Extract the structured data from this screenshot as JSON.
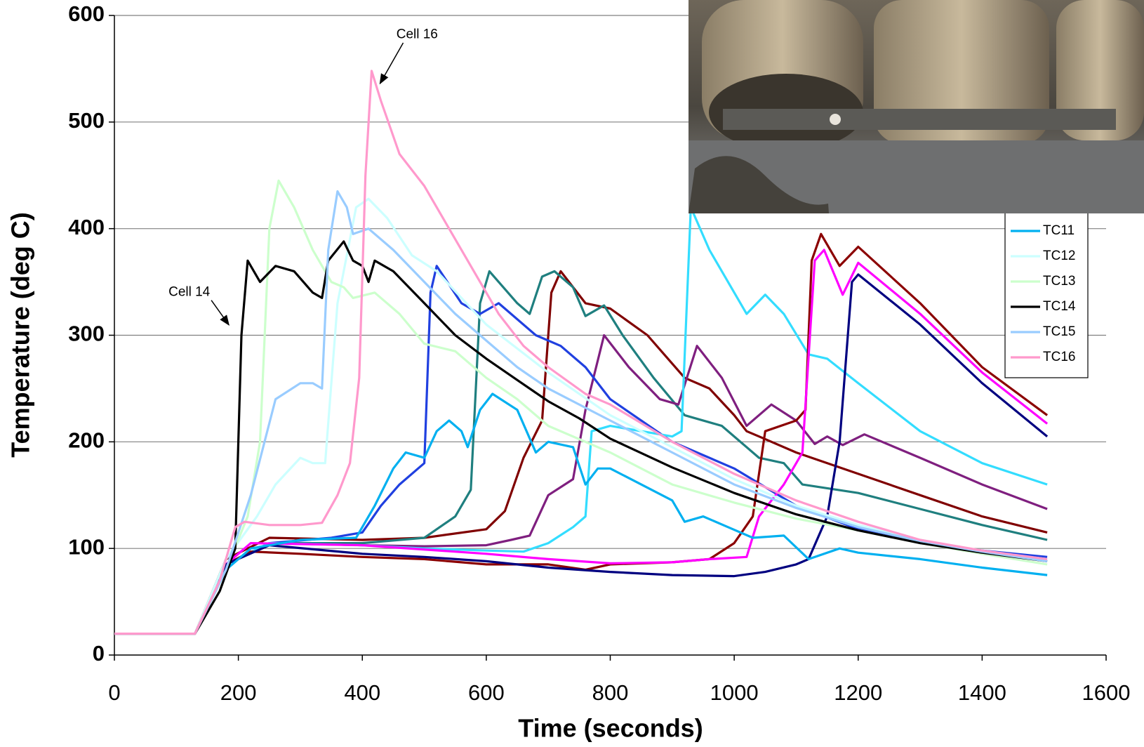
{
  "chart_data": {
    "type": "line",
    "x_label": "Time (seconds)",
    "y_label": "Temperature (deg C)",
    "xlim": [
      0,
      1600
    ],
    "xticks": [
      0,
      200,
      400,
      600,
      800,
      1000,
      1200,
      1400,
      1600
    ],
    "ylim": [
      0,
      600
    ],
    "yticks": [
      0,
      100,
      200,
      300,
      400,
      500,
      600
    ],
    "grid": true,
    "legend": "right",
    "annotations": [
      {
        "text": "Cell 16",
        "x": 415,
        "y": 548
      },
      {
        "text": "Cell 14",
        "x": 196,
        "y": 315
      }
    ],
    "series": [
      {
        "color": "#800000",
        "x": [
          0,
          130,
          180,
          250,
          400,
          500,
          600,
          630,
          660,
          690,
          705,
          720,
          760,
          800,
          860,
          920,
          960,
          1000,
          1020,
          1040,
          1100,
          1200,
          1300,
          1400,
          1505
        ],
        "values": [
          20,
          20,
          90,
          110,
          108,
          110,
          118,
          135,
          185,
          220,
          340,
          360,
          330,
          325,
          300,
          260,
          250,
          225,
          210,
          205,
          190,
          170,
          150,
          130,
          115
        ]
      },
      {
        "color": "#1f7f7f",
        "x": [
          0,
          130,
          180,
          250,
          400,
          500,
          550,
          575,
          590,
          605,
          650,
          670,
          690,
          710,
          740,
          760,
          790,
          820,
          870,
          920,
          980,
          1040,
          1080,
          1110,
          1200,
          1300,
          1400,
          1505
        ],
        "values": [
          20,
          20,
          85,
          105,
          105,
          110,
          130,
          155,
          330,
          360,
          330,
          320,
          355,
          360,
          345,
          318,
          328,
          300,
          260,
          225,
          215,
          185,
          180,
          160,
          152,
          137,
          122,
          108
        ]
      },
      {
        "color": "#7f1f7f",
        "x": [
          0,
          130,
          180,
          250,
          400,
          500,
          600,
          640,
          670,
          700,
          740,
          760,
          790,
          830,
          880,
          910,
          940,
          980,
          1020,
          1060,
          1100,
          1130,
          1150,
          1175,
          1210,
          1300,
          1400,
          1505
        ],
        "values": [
          20,
          20,
          85,
          105,
          103,
          102,
          103,
          108,
          112,
          150,
          165,
          230,
          300,
          270,
          240,
          235,
          290,
          260,
          215,
          235,
          220,
          198,
          205,
          197,
          207,
          185,
          160,
          137
        ]
      },
      {
        "color": "#2040e0",
        "x": [
          0,
          130,
          180,
          250,
          350,
          400,
          430,
          460,
          490,
          500,
          510,
          520,
          560,
          590,
          620,
          680,
          720,
          760,
          800,
          900,
          1000,
          1100,
          1200,
          1300,
          1400,
          1505
        ],
        "values": [
          20,
          20,
          85,
          105,
          110,
          115,
          140,
          160,
          175,
          180,
          340,
          365,
          330,
          320,
          330,
          300,
          290,
          270,
          240,
          200,
          175,
          140,
          118,
          105,
          98,
          92
        ]
      },
      {
        "color": "#33ddff",
        "x": [
          0,
          130,
          180,
          250,
          400,
          500,
          600,
          660,
          700,
          740,
          760,
          770,
          800,
          900,
          915,
          930,
          960,
          1020,
          1050,
          1080,
          1120,
          1150,
          1200,
          1300,
          1400,
          1505
        ],
        "values": [
          20,
          20,
          85,
          105,
          103,
          100,
          98,
          97,
          105,
          120,
          130,
          210,
          215,
          205,
          210,
          420,
          380,
          320,
          338,
          320,
          282,
          278,
          255,
          210,
          180,
          160
        ]
      },
      {
        "color": "#8b0000",
        "x": [
          0,
          130,
          180,
          220,
          300,
          400,
          500,
          600,
          700,
          760,
          800,
          900,
          960,
          1000,
          1030,
          1050,
          1100,
          1115,
          1125,
          1140,
          1170,
          1200,
          1300,
          1400,
          1505
        ],
        "values": [
          20,
          20,
          85,
          97,
          95,
          92,
          90,
          85,
          85,
          80,
          85,
          87,
          90,
          105,
          130,
          210,
          220,
          230,
          370,
          395,
          365,
          383,
          330,
          270,
          225
        ]
      },
      {
        "color": "#ff00ff",
        "x": [
          0,
          130,
          180,
          220,
          400,
          600,
          700,
          800,
          900,
          960,
          1020,
          1040,
          1080,
          1110,
          1130,
          1145,
          1175,
          1200,
          1300,
          1400,
          1505
        ],
        "values": [
          20,
          20,
          85,
          105,
          103,
          95,
          90,
          86,
          87,
          90,
          92,
          130,
          160,
          190,
          370,
          380,
          338,
          368,
          320,
          265,
          217
        ]
      },
      {
        "color": "#000080",
        "x": [
          0,
          130,
          180,
          250,
          400,
          500,
          600,
          700,
          800,
          900,
          1000,
          1050,
          1100,
          1120,
          1150,
          1170,
          1190,
          1200,
          1300,
          1400,
          1505
        ],
        "values": [
          20,
          20,
          85,
          103,
          95,
          92,
          88,
          82,
          78,
          75,
          74,
          78,
          85,
          90,
          130,
          200,
          350,
          357,
          310,
          255,
          205
        ]
      },
      {
        "name": "TC11",
        "color": "#00b0f0",
        "x": [
          0,
          130,
          180,
          220,
          300,
          390,
          420,
          450,
          470,
          500,
          520,
          540,
          560,
          570,
          590,
          610,
          650,
          680,
          700,
          740,
          760,
          780,
          800,
          850,
          900,
          920,
          950,
          990,
          1030,
          1080,
          1120,
          1170,
          1200,
          1300,
          1400,
          1505
        ],
        "values": [
          20,
          20,
          80,
          100,
          108,
          110,
          140,
          175,
          190,
          185,
          210,
          220,
          210,
          195,
          230,
          245,
          230,
          190,
          200,
          195,
          160,
          175,
          175,
          160,
          145,
          125,
          130,
          120,
          110,
          112,
          90,
          100,
          96,
          90,
          82,
          75
        ]
      },
      {
        "name": "TC12",
        "color": "#ccffff",
        "x": [
          0,
          130,
          180,
          230,
          260,
          300,
          320,
          340,
          360,
          390,
          410,
          440,
          480,
          520,
          560,
          600,
          700,
          800,
          900,
          1000,
          1100,
          1200,
          1300,
          1400,
          1505
        ],
        "values": [
          20,
          20,
          90,
          130,
          160,
          185,
          180,
          180,
          330,
          420,
          428,
          410,
          375,
          360,
          335,
          310,
          265,
          225,
          195,
          165,
          140,
          122,
          108,
          97,
          90
        ]
      },
      {
        "name": "TC13",
        "color": "#ccffcc",
        "x": [
          0,
          130,
          180,
          215,
          235,
          250,
          265,
          290,
          320,
          350,
          370,
          385,
          420,
          460,
          500,
          550,
          600,
          650,
          700,
          800,
          900,
          1000,
          1100,
          1200,
          1300,
          1400,
          1505
        ],
        "values": [
          20,
          20,
          80,
          130,
          200,
          400,
          445,
          420,
          380,
          350,
          345,
          335,
          340,
          320,
          292,
          285,
          260,
          240,
          215,
          190,
          160,
          143,
          128,
          117,
          105,
          95,
          85
        ]
      },
      {
        "name": "TC14",
        "color": "#000000",
        "x": [
          0,
          130,
          170,
          195,
          205,
          215,
          235,
          260,
          290,
          320,
          335,
          345,
          370,
          385,
          400,
          410,
          420,
          450,
          500,
          550,
          600,
          650,
          700,
          750,
          800,
          900,
          1000,
          1100,
          1200,
          1300,
          1400,
          1505
        ],
        "values": [
          20,
          20,
          60,
          100,
          300,
          370,
          350,
          365,
          360,
          340,
          335,
          370,
          388,
          370,
          365,
          350,
          370,
          360,
          330,
          300,
          278,
          258,
          238,
          222,
          203,
          176,
          152,
          132,
          117,
          105,
          96,
          88
        ]
      },
      {
        "name": "TC15",
        "color": "#99ccff",
        "x": [
          0,
          130,
          180,
          220,
          260,
          300,
          320,
          335,
          345,
          360,
          375,
          385,
          410,
          450,
          500,
          550,
          600,
          650,
          700,
          800,
          900,
          1000,
          1100,
          1200,
          1300,
          1400,
          1505
        ],
        "values": [
          20,
          20,
          80,
          150,
          240,
          255,
          255,
          250,
          380,
          435,
          420,
          395,
          400,
          380,
          350,
          320,
          295,
          270,
          250,
          220,
          190,
          160,
          138,
          120,
          107,
          97,
          88
        ]
      },
      {
        "name": "TC16",
        "color": "#ff99cc",
        "x": [
          0,
          130,
          170,
          195,
          210,
          250,
          300,
          335,
          360,
          380,
          395,
          405,
          415,
          430,
          460,
          500,
          540,
          580,
          620,
          660,
          700,
          760,
          800,
          900,
          1000,
          1100,
          1200,
          1300,
          1400,
          1505
        ],
        "values": [
          20,
          20,
          70,
          120,
          125,
          122,
          122,
          124,
          150,
          180,
          260,
          450,
          548,
          520,
          470,
          440,
          400,
          360,
          320,
          290,
          270,
          245,
          235,
          200,
          170,
          145,
          125,
          108,
          98,
          90
        ]
      }
    ]
  }
}
